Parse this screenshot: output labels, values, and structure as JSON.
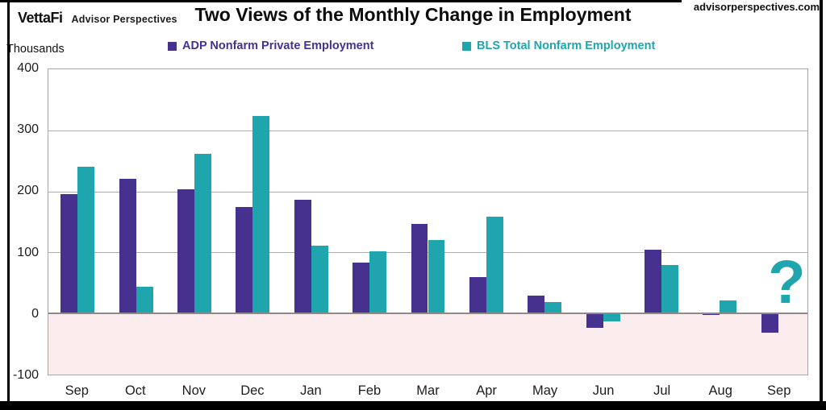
{
  "header": {
    "logo_primary": "VettaFi",
    "logo_secondary": "Advisor Perspectives",
    "title": "Two Views of the Monthly Change in Employment",
    "watermark": "advisorperspectives.com"
  },
  "axis_unit_label": "Thousands",
  "chart_data": {
    "type": "bar",
    "title": "Two Views of the Monthly Change in Employment",
    "ylabel": "Thousands",
    "categories": [
      "Sep",
      "Oct",
      "Nov",
      "Dec",
      "Jan",
      "Feb",
      "Mar",
      "Apr",
      "May",
      "Jun",
      "Jul",
      "Aug",
      "Sep"
    ],
    "series": [
      {
        "name": "ADP Nonfarm Private Employment",
        "color": "#46318f",
        "values": [
          195,
          220,
          203,
          175,
          186,
          84,
          147,
          60,
          29,
          -23,
          104,
          -3,
          -32
        ]
      },
      {
        "name": "BLS Total Nonfarm Employment",
        "color": "#1fa5ad",
        "values": [
          240,
          44,
          261,
          323,
          111,
          102,
          120,
          158,
          19,
          -13,
          79,
          22,
          null
        ]
      }
    ],
    "missing_value_marker": "?",
    "ylim": [
      -100,
      400
    ],
    "yticks": [
      400,
      300,
      200,
      100,
      0,
      -100
    ],
    "grid": true,
    "legend_position": "top",
    "negative_zone_color": "#fbecee",
    "gridline_color": "#aeaeae",
    "zero_line_color": "#8b8b8b"
  }
}
